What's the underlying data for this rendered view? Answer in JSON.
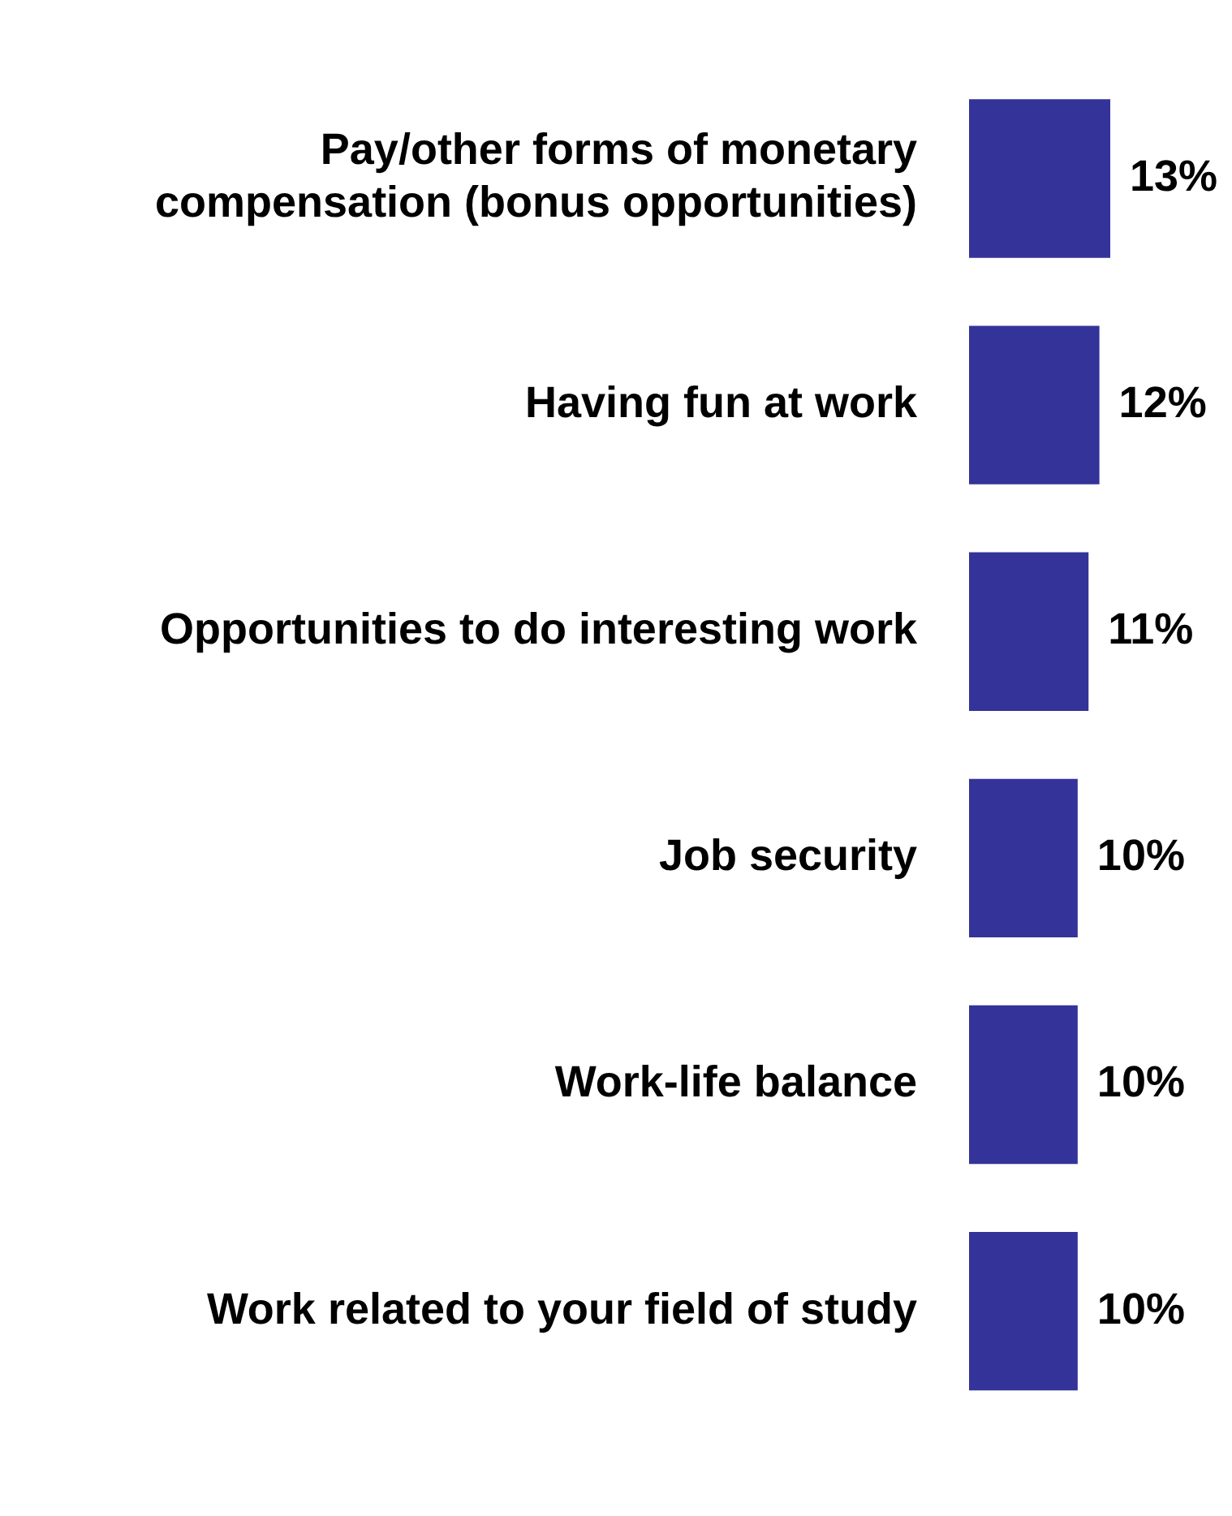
{
  "chart_data": {
    "type": "bar",
    "orientation": "horizontal",
    "categories": [
      "Pay/other forms of monetary compensation (bonus opportunities)",
      "Having fun at work",
      "Opportunities to do interesting work",
      "Job security",
      "Work-life balance",
      "Work related to your field of study"
    ],
    "values": [
      13,
      12,
      11,
      10,
      10,
      10
    ],
    "value_labels": [
      "13%",
      "12%",
      "11%",
      "10%",
      "10%",
      "10%"
    ],
    "color": "#333399",
    "legend": false,
    "tick_labels": "y"
  }
}
